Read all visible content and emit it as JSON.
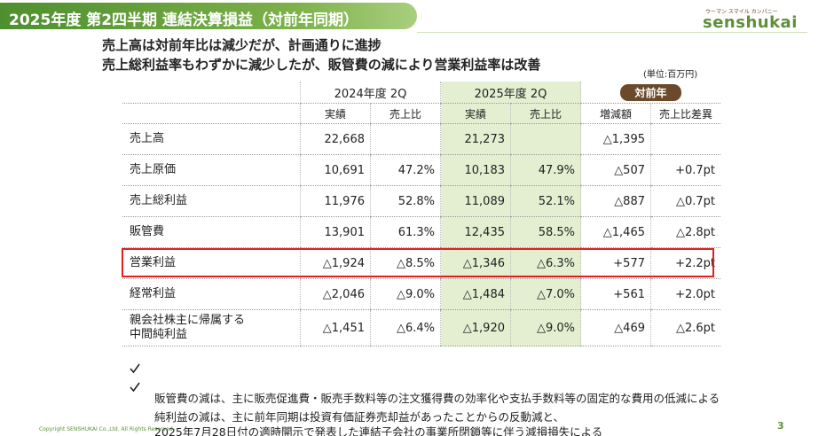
{
  "header": {
    "title": "2025年度 第2四半期 連結決算損益（対前年同期）",
    "logo_small": "ウーマン スマイル カンパニー",
    "logo": "senshukai"
  },
  "summary": [
    "売上高は対前年比は減少だが、計画通りに進捗",
    "売上総利益率もわずかに減少したが、販管費の減により営業利益率は改善"
  ],
  "unit": "(単位:百万円)",
  "table": {
    "groups": [
      "2024年度 2Q",
      "2025年度 2Q",
      "対前年"
    ],
    "columns": [
      "実績",
      "売上比",
      "実績",
      "売上比",
      "増減額",
      "売上比差異"
    ],
    "rows": [
      {
        "label": "売上高",
        "cells": [
          "22,668",
          null,
          "21,273",
          null,
          "△1,395",
          null
        ]
      },
      {
        "label": "売上原価",
        "cells": [
          "10,691",
          "47.2%",
          "10,183",
          "47.9%",
          "△507",
          "+0.7pt"
        ]
      },
      {
        "label": "売上総利益",
        "cells": [
          "11,976",
          "52.8%",
          "11,089",
          "52.1%",
          "△887",
          "△0.7pt"
        ]
      },
      {
        "label": "販管費",
        "cells": [
          "13,901",
          "61.3%",
          "12,435",
          "58.5%",
          "△1,465",
          "△2.8pt"
        ]
      },
      {
        "label": "営業利益",
        "cells": [
          "△1,924",
          "△8.5%",
          "△1,346",
          "△6.3%",
          "+577",
          "+2.2pt"
        ]
      },
      {
        "label": "経常利益",
        "cells": [
          "△2,046",
          "△9.0%",
          "△1,484",
          "△7.0%",
          "+561",
          "+2.0pt"
        ]
      },
      {
        "label": "親会社株主に帰属する\n中間純利益",
        "cells": [
          "△1,451",
          "△6.4%",
          "△1,920",
          "△9.0%",
          "△469",
          "△2.6pt"
        ]
      }
    ]
  },
  "notes": [
    "販管費の減は、主に販売促進費・販売手数料等の注文獲得費の効率化や支払手数料等の固定的な費用の低減による",
    "純利益の減は、主に前年同期は投資有価証券売却益があったことからの反動減と、\n2025年7月28日付の適時開示で発表した連結子会社の事業所閉鎖等に伴う減損損失による"
  ],
  "footer": {
    "copyright": "Copyright SENSHUKAI Co.,Ltd. All Rights Reserved.",
    "page": "3"
  }
}
